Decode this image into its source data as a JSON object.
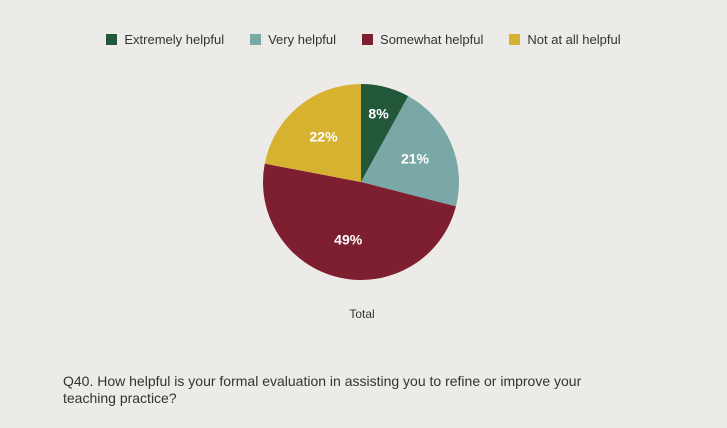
{
  "chart_data": {
    "type": "pie",
    "categories": [
      "Extremely helpful",
      "Very helpful",
      "Somewhat helpful",
      "Not at all helpful"
    ],
    "values": [
      8,
      21,
      49,
      22
    ],
    "value_labels": [
      "8%",
      "21%",
      "49%",
      "22%"
    ],
    "colors": [
      "#22573a",
      "#7aa8a6",
      "#7e1f31",
      "#d7b231"
    ],
    "legend_position": "top",
    "caption": "Total",
    "start_angle_deg": 0,
    "direction": "clockwise"
  },
  "question": "Q40. How helpful is your formal evaluation in assisting you to refine or improve your teaching practice?"
}
